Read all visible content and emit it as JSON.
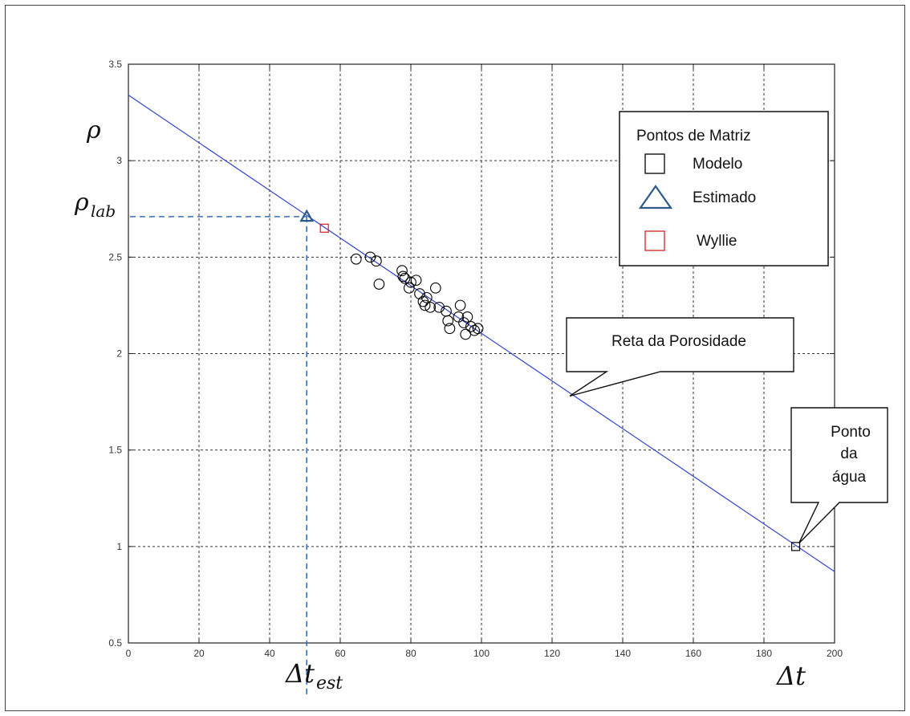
{
  "chart_data": {
    "type": "scatter",
    "title": "",
    "xlabel": "Δt",
    "ylabel": "ρ",
    "xlim": [
      0,
      200
    ],
    "ylim": [
      0.5,
      3.5
    ],
    "grid": true,
    "x_ticks": [
      "0",
      "20",
      "40",
      "60",
      "80",
      "100",
      "120",
      "140",
      "160",
      "180",
      "200"
    ],
    "y_ticks": [
      "0.5",
      "1",
      "1.5",
      "2",
      "2.5",
      "3",
      "3.5"
    ],
    "x_tick_values": [
      0,
      20,
      40,
      60,
      80,
      100,
      120,
      140,
      160,
      180,
      200
    ],
    "y_tick_values": [
      0.5,
      1,
      1.5,
      2,
      2.5,
      3,
      3.5
    ],
    "labels": {
      "rho": "ρ",
      "rho_lab_base": "ρ",
      "rho_lab_sub": "lab",
      "dt_est_base": "Δt",
      "dt_est_sub": "est",
      "dt": "Δt"
    },
    "line": {
      "name": "Reta da Porosidade",
      "x": [
        0,
        200
      ],
      "y": [
        3.34,
        0.87
      ],
      "color": "#3344cc"
    },
    "series": [
      {
        "marker": "circle",
        "color": "#000000",
        "points": [
          [
            64.5,
            2.49
          ],
          [
            68.5,
            2.5
          ],
          [
            70.2,
            2.48
          ],
          [
            71.0,
            2.36
          ],
          [
            77.5,
            2.43
          ],
          [
            77.8,
            2.4
          ],
          [
            78.3,
            2.39
          ],
          [
            79.5,
            2.34
          ],
          [
            80.0,
            2.37
          ],
          [
            81.5,
            2.38
          ],
          [
            82.5,
            2.31
          ],
          [
            83.5,
            2.27
          ],
          [
            84.0,
            2.25
          ],
          [
            84.5,
            2.29
          ],
          [
            85.5,
            2.24
          ],
          [
            87.0,
            2.34
          ],
          [
            88.0,
            2.24
          ],
          [
            90.0,
            2.22
          ],
          [
            90.5,
            2.17
          ],
          [
            91.0,
            2.13
          ],
          [
            93.5,
            2.19
          ],
          [
            94.0,
            2.25
          ],
          [
            95.0,
            2.16
          ],
          [
            95.5,
            2.1
          ],
          [
            96.0,
            2.19
          ],
          [
            97.0,
            2.14
          ],
          [
            98.0,
            2.12
          ],
          [
            99.0,
            2.13
          ]
        ]
      },
      {
        "name": "Modelo",
        "marker": "square",
        "color": "#000000",
        "points": [
          [
            189,
            1.0
          ]
        ]
      },
      {
        "name": "Estimado",
        "marker": "triangle",
        "color": "#2c5a8c",
        "points": [
          [
            50.5,
            2.71
          ]
        ]
      },
      {
        "name": "Wyllie",
        "marker": "square",
        "color": "#d42020",
        "points": [
          [
            55.5,
            2.65
          ]
        ]
      }
    ],
    "guides": {
      "x": 50.5,
      "y": 2.71,
      "color": "#3a6fb5"
    },
    "legend": {
      "title": "Pontos de Matriz",
      "placement": "top-right",
      "items": [
        {
          "label": "Modelo",
          "marker": "square",
          "color": "#000000"
        },
        {
          "label": "Estimado",
          "marker": "triangle",
          "color": "#2c5a8c"
        },
        {
          "label": "Wyllie",
          "marker": "square",
          "color": "#d42020"
        }
      ]
    },
    "annotations": [
      {
        "id": "reta",
        "text": [
          "Reta da Porosidade"
        ],
        "target": [
          125,
          1.78
        ]
      },
      {
        "id": "agua",
        "text": [
          "Ponto",
          "da",
          "água"
        ],
        "target": [
          189,
          1.0
        ]
      }
    ]
  }
}
